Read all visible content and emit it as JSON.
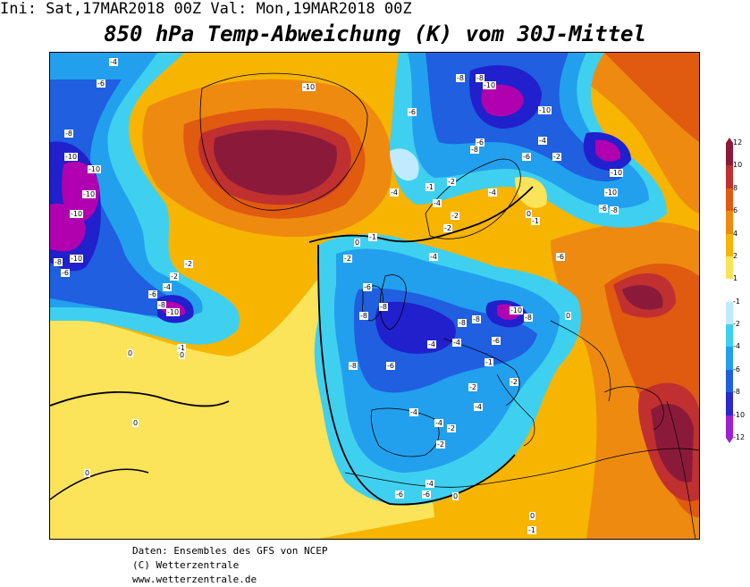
{
  "header": {
    "init_run": "Ini: Sat,17MAR2018 00Z Val: Mon,19MAR2018 00Z",
    "title": "850 hPa Temp-Abweichung (K) vom 30J-Mittel"
  },
  "footer": {
    "line1": "Daten: Ensembles des GFS von NCEP",
    "line2": "(C) Wetterzentrale",
    "line3": "www.wetterzentrale.de"
  },
  "legend": {
    "labels": [
      "12",
      "10",
      "8",
      "6",
      "4",
      "2",
      "1",
      "-1",
      "-2",
      "-4",
      "-6",
      "-8",
      "-10",
      "-12"
    ],
    "colors": [
      "#8b1a3a",
      "#c03030",
      "#e05a10",
      "#ee8a10",
      "#f7b400",
      "#fbe35a",
      "#ffffff",
      "#bfeaff",
      "#3fd0f0",
      "#22a0ee",
      "#1f5fe0",
      "#2a2acc",
      "#a020d0"
    ]
  },
  "map": {
    "colors": {
      "deep_purple": "#b000b0",
      "blue_dark": "#2020cc",
      "blue": "#1f5fe0",
      "blue_light": "#22a0ee",
      "cyan": "#3fd0f0",
      "pale_cyan": "#bfeaff",
      "yellow": "#fbe35a",
      "orange_light": "#f7b400",
      "orange": "#ee8a10",
      "dark_orange": "#e05a10",
      "red": "#c03030",
      "maroon": "#8b1a3a"
    },
    "labels": [
      {
        "id": "l1",
        "text": "-4"
      },
      {
        "id": "l2",
        "text": "-6"
      },
      {
        "id": "l3",
        "text": "-8"
      },
      {
        "id": "l4",
        "text": "-10"
      },
      {
        "id": "l5",
        "text": "-10"
      },
      {
        "id": "l6",
        "text": "-10"
      },
      {
        "id": "l7",
        "text": "-10"
      },
      {
        "id": "l8",
        "text": "-8"
      },
      {
        "id": "l9",
        "text": "-10"
      },
      {
        "id": "l10",
        "text": "-6"
      },
      {
        "id": "l11",
        "text": "-2"
      },
      {
        "id": "l12",
        "text": "-2"
      },
      {
        "id": "l13",
        "text": "-4"
      },
      {
        "id": "l14",
        "text": "-6"
      },
      {
        "id": "l15",
        "text": "-8"
      },
      {
        "id": "l16",
        "text": "-10"
      },
      {
        "id": "l17",
        "text": "-1"
      },
      {
        "id": "l18",
        "text": "0"
      },
      {
        "id": "l19",
        "text": "0"
      },
      {
        "id": "l20",
        "text": "0"
      },
      {
        "id": "l21",
        "text": "-10"
      },
      {
        "id": "l22",
        "text": "-6"
      },
      {
        "id": "l23",
        "text": "-8"
      },
      {
        "id": "l24",
        "text": "-8"
      },
      {
        "id": "l25",
        "text": "-10"
      },
      {
        "id": "l26",
        "text": "-10"
      },
      {
        "id": "l27",
        "text": "-6"
      },
      {
        "id": "l28",
        "text": "-8"
      },
      {
        "id": "l29",
        "text": "-10"
      },
      {
        "id": "l30",
        "text": "-4"
      },
      {
        "id": "l31",
        "text": "-6"
      },
      {
        "id": "l32",
        "text": "-10"
      },
      {
        "id": "l33",
        "text": "-8"
      },
      {
        "id": "l34",
        "text": "-6"
      },
      {
        "id": "l35",
        "text": "-2"
      },
      {
        "id": "l36",
        "text": "-4"
      },
      {
        "id": "l37",
        "text": "-4"
      },
      {
        "id": "l38",
        "text": "-1"
      },
      {
        "id": "l39",
        "text": "-2"
      },
      {
        "id": "l40",
        "text": "-4"
      },
      {
        "id": "l41",
        "text": "-2"
      },
      {
        "id": "l42",
        "text": "0"
      },
      {
        "id": "l43",
        "text": "-1"
      },
      {
        "id": "l44",
        "text": "-2"
      },
      {
        "id": "l45",
        "text": "-4"
      },
      {
        "id": "l46",
        "text": "-1"
      },
      {
        "id": "l47",
        "text": "-2"
      },
      {
        "id": "l48",
        "text": "-6"
      },
      {
        "id": "l49",
        "text": "-6"
      },
      {
        "id": "l50",
        "text": "-8"
      },
      {
        "id": "l51",
        "text": "-8"
      },
      {
        "id": "l52",
        "text": "-10"
      },
      {
        "id": "l53",
        "text": "-8"
      },
      {
        "id": "l54",
        "text": "-8"
      },
      {
        "id": "l55",
        "text": "-8"
      },
      {
        "id": "l56",
        "text": "-4"
      },
      {
        "id": "l57",
        "text": "-6"
      },
      {
        "id": "l58",
        "text": "-8"
      },
      {
        "id": "l59",
        "text": "-6"
      },
      {
        "id": "l60",
        "text": "-4"
      },
      {
        "id": "l61",
        "text": "-1"
      },
      {
        "id": "l62",
        "text": "-2"
      },
      {
        "id": "l63",
        "text": "-2"
      },
      {
        "id": "l64",
        "text": "-4"
      },
      {
        "id": "l65",
        "text": "-2"
      },
      {
        "id": "l66",
        "text": "-4"
      },
      {
        "id": "l67",
        "text": "-2"
      },
      {
        "id": "l68",
        "text": "-4"
      },
      {
        "id": "l69",
        "text": "-6"
      },
      {
        "id": "l70",
        "text": "-4"
      },
      {
        "id": "l71",
        "text": "0"
      },
      {
        "id": "l72",
        "text": "-6"
      },
      {
        "id": "l73",
        "text": "0"
      },
      {
        "id": "l74",
        "text": "0"
      },
      {
        "id": "l75",
        "text": "-1"
      },
      {
        "id": "l76",
        "text": "0"
      },
      {
        "id": "l77",
        "text": "0"
      }
    ]
  }
}
